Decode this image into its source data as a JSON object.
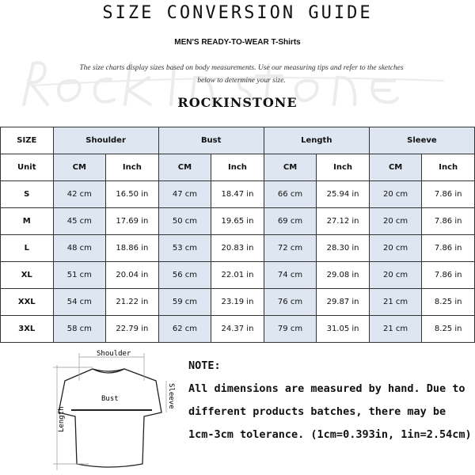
{
  "title": "SIZE CONVERSION GUIDE",
  "subtitle": "MEN'S READY-TO-WEAR T-Shirts",
  "description": "The size charts display sizes based on body measurements.  Use our measuring tips and refer to the sketches below to determine your size.",
  "brand": "ROCKINSTONE",
  "watermark": "ROCKINSTONE",
  "table": {
    "size_label": "SIZE",
    "unit_label": "Unit",
    "groups": [
      "Shoulder",
      "Bust",
      "Length",
      "Sleeve"
    ],
    "units": [
      "CM",
      "Inch"
    ],
    "rows": [
      [
        "S",
        "42 cm",
        "16.50 in",
        "47 cm",
        "18.47 in",
        "66 cm",
        "25.94 in",
        "20 cm",
        "7.86 in"
      ],
      [
        "M",
        "45 cm",
        "17.69 in",
        "50 cm",
        "19.65 in",
        "69 cm",
        "27.12 in",
        "20 cm",
        "7.86 in"
      ],
      [
        "L",
        "48 cm",
        "18.86 in",
        "53 cm",
        "20.83 in",
        "72 cm",
        "28.30 in",
        "20 cm",
        "7.86 in"
      ],
      [
        "XL",
        "51 cm",
        "20.04 in",
        "56 cm",
        "22.01 in",
        "74 cm",
        "29.08 in",
        "20 cm",
        "7.86 in"
      ],
      [
        "XXL",
        "54 cm",
        "21.22 in",
        "59 cm",
        "23.19 in",
        "76 cm",
        "29.87 in",
        "21 cm",
        "8.25 in"
      ],
      [
        "3XL",
        "58 cm",
        "22.79 in",
        "62 cm",
        "24.37 in",
        "79 cm",
        "31.05 in",
        "21 cm",
        "8.25 in"
      ]
    ]
  },
  "diagram": {
    "shoulder": "Shoulder",
    "bust": "Bust",
    "sleeve": "Sleeve",
    "length": "Length"
  },
  "note": {
    "heading": "NOTE:",
    "text": "All dimensions are measured by hand. Due to different products batches, there may be 1cm-3cm tolerance. (1cm=0.393in, 1in=2.54cm)"
  },
  "colors": {
    "header_fill": "#dde6f1"
  }
}
